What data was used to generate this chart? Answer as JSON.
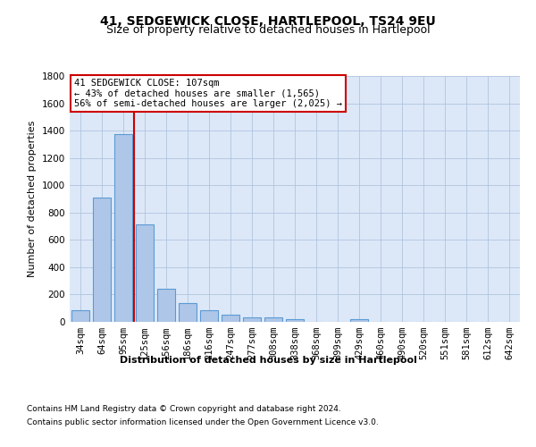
{
  "title": "41, SEDGEWICK CLOSE, HARTLEPOOL, TS24 9EU",
  "subtitle": "Size of property relative to detached houses in Hartlepool",
  "xlabel_bottom": "Distribution of detached houses by size in Hartlepool",
  "ylabel": "Number of detached properties",
  "categories": [
    "34sqm",
    "64sqm",
    "95sqm",
    "125sqm",
    "156sqm",
    "186sqm",
    "216sqm",
    "247sqm",
    "277sqm",
    "308sqm",
    "338sqm",
    "368sqm",
    "399sqm",
    "429sqm",
    "460sqm",
    "490sqm",
    "520sqm",
    "551sqm",
    "581sqm",
    "612sqm",
    "642sqm"
  ],
  "values": [
    85,
    910,
    1375,
    715,
    245,
    140,
    85,
    50,
    30,
    30,
    20,
    0,
    0,
    20,
    0,
    0,
    0,
    0,
    0,
    0,
    0
  ],
  "bar_color": "#aec6e8",
  "bar_edgecolor": "#5b9bd5",
  "vline_x": 2.5,
  "vline_color": "#cc0000",
  "annotation_text": "41 SEDGEWICK CLOSE: 107sqm\n← 43% of detached houses are smaller (1,565)\n56% of semi-detached houses are larger (2,025) →",
  "annotation_box_color": "#cc0000",
  "annotation_box_facecolor": "white",
  "ylim": [
    0,
    1800
  ],
  "yticks": [
    0,
    200,
    400,
    600,
    800,
    1000,
    1200,
    1400,
    1600,
    1800
  ],
  "footer_line1": "Contains HM Land Registry data © Crown copyright and database right 2024.",
  "footer_line2": "Contains public sector information licensed under the Open Government Licence v3.0.",
  "background_color": "#dce8f8",
  "grid_color": "#b0c4de",
  "title_fontsize": 10,
  "subtitle_fontsize": 9,
  "axis_label_fontsize": 8,
  "tick_fontsize": 7.5,
  "footer_fontsize": 6.5,
  "annotation_fontsize": 7.5
}
